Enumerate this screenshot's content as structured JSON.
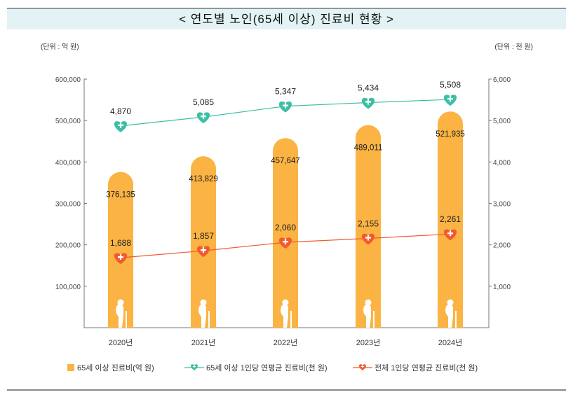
{
  "title": "< 연도별 노인(65세 이상) 진료비 현황 >",
  "chart_data": {
    "type": "bar",
    "categories": [
      "2020년",
      "2021년",
      "2022년",
      "2023년",
      "2024년"
    ],
    "left_unit": "(단위 : 억 원)",
    "right_unit": "(단위 : 천 원)",
    "left_ticks": [
      "100,000",
      "200,000",
      "300,000",
      "400,000",
      "500,000",
      "600,000"
    ],
    "right_ticks": [
      "1,000",
      "2,000",
      "3,000",
      "4,000",
      "5,000",
      "6,000"
    ],
    "ylim_left": [
      0,
      600000
    ],
    "ylim_right": [
      0,
      6000
    ],
    "series": [
      {
        "name": "65세 이상 진료비(억 원)",
        "type": "bar",
        "axis": "left",
        "color": "#fbb343",
        "values": [
          376135,
          413829,
          457647,
          489011,
          521935
        ],
        "labels": [
          "376,135",
          "413,829",
          "457,647",
          "489,011",
          "521,935"
        ]
      },
      {
        "name": "65세 이상 1인당 연평균 진료비(천 원)",
        "type": "line",
        "axis": "right",
        "color": "#3cbfa4",
        "values": [
          4870,
          5085,
          5347,
          5434,
          5508
        ],
        "labels": [
          "4,870",
          "5,085",
          "5,347",
          "5,434",
          "5,508"
        ]
      },
      {
        "name": "전체 1인당 연평균 진료비(천 원)",
        "type": "line",
        "axis": "right",
        "color": "#f15a30",
        "values": [
          1688,
          1857,
          2060,
          2155,
          2261
        ],
        "labels": [
          "1,688",
          "1,857",
          "2,060",
          "2,155",
          "2,261"
        ]
      }
    ]
  }
}
